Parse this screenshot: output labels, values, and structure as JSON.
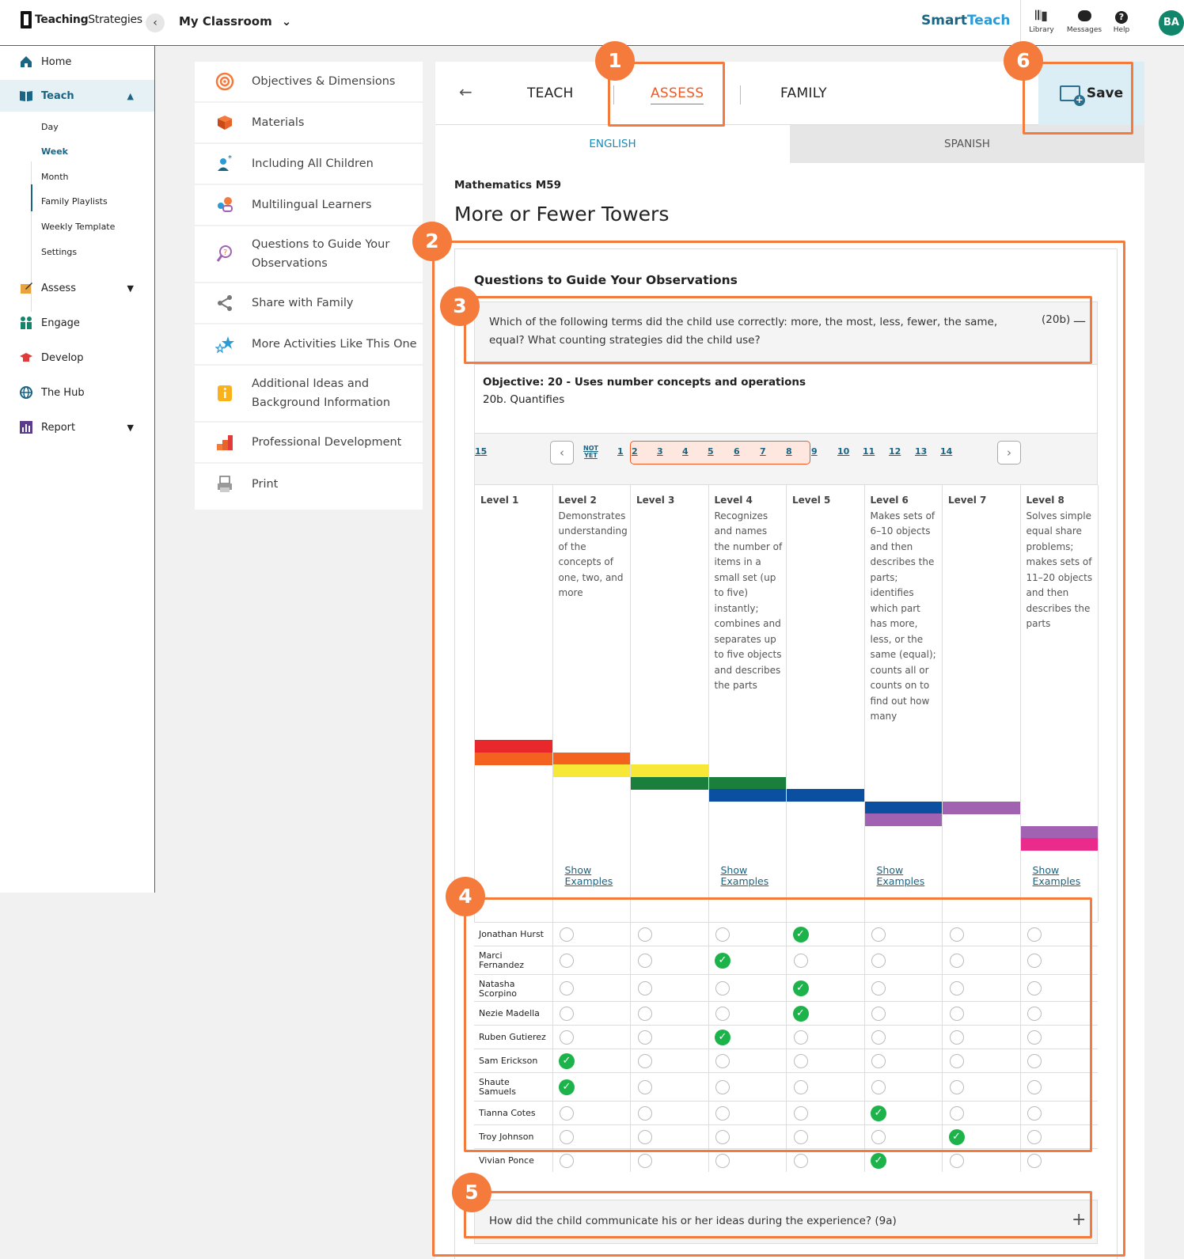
{
  "header": {
    "logo_bold": "Teaching",
    "logo_light": "Strategies",
    "classroom": "My Classroom",
    "brand_a": "Smart",
    "brand_b": "Teach",
    "library": "Library",
    "messages": "Messages",
    "help": "Help",
    "avatar": "BA"
  },
  "sidebar": {
    "items": [
      {
        "label": "Home"
      },
      {
        "label": "Teach"
      },
      {
        "label": "Assess"
      },
      {
        "label": "Engage"
      },
      {
        "label": "Develop"
      },
      {
        "label": "The Hub"
      },
      {
        "label": "Report"
      }
    ],
    "teach_sub": [
      "Day",
      "Week",
      "Month",
      "Family Playlists",
      "Weekly Template",
      "Settings"
    ]
  },
  "left_menu": [
    "Objectives & Dimensions",
    "Materials",
    "Including All Children",
    "Multilingual Learners",
    "Questions to Guide Your Observations",
    "Share with Family",
    "More Activities Like This One",
    "Additional Ideas and Background Information",
    "Professional Development",
    "Print"
  ],
  "tabs": {
    "teach": "TEACH",
    "assess": "ASSESS",
    "family": "FAMILY",
    "save": "Save"
  },
  "languages": {
    "english": "ENGLISH",
    "spanish": "SPANISH"
  },
  "lesson": {
    "subject": "Mathematics M59",
    "title": "More or Fewer Towers"
  },
  "questions": {
    "heading": "Questions to Guide Your Observations",
    "q1_text": "Which of the following terms did the child use correctly: more, the most, less, fewer, the same, equal? What counting strategies did the child use?",
    "q1_code": "(20b)",
    "objective_title": "Objective: 20 - Uses number concepts and operations",
    "objective_sub": "20b. Quantifies",
    "q2_text": "How did the child communicate his or her ideas during the experience? (9a)"
  },
  "pager": {
    "not_yet": "NOT YET",
    "pages": [
      "1",
      "2",
      "3",
      "4",
      "5",
      "6",
      "7",
      "8",
      "9",
      "10",
      "11",
      "12",
      "13",
      "14",
      "15"
    ]
  },
  "levels": [
    {
      "name": "Level 1",
      "desc": ""
    },
    {
      "name": "Level 2",
      "desc": "Demonstrates understanding of the concepts of one, two, and more"
    },
    {
      "name": "Level 3",
      "desc": ""
    },
    {
      "name": "Level 4",
      "desc": "Recognizes and names the number of items in a small set (up to five) instantly; combines and separates up to five objects and describes the parts"
    },
    {
      "name": "Level 5",
      "desc": ""
    },
    {
      "name": "Level 6",
      "desc": "Makes sets of 6–10 objects and then describes the parts; identifies which part has more, less, or the same (equal); counts all or counts on to find out how many"
    },
    {
      "name": "Level 7",
      "desc": ""
    },
    {
      "name": "Level 8",
      "desc": "Solves simple equal share problems; makes sets of 11–20 objects and then describes the parts"
    }
  ],
  "show_examples": "Show Examples",
  "colors": {
    "red": "#e8282b",
    "orange": "#f4621f",
    "yellow": "#f7e837",
    "green": "#1a7f3c",
    "blue": "#0b4fa0",
    "purple": "#a062b1",
    "pink": "#ea2b8c",
    "accent": "#f47b3c"
  },
  "students": [
    {
      "name": "Jonathan Hurst",
      "level": 4
    },
    {
      "name": "Marci Fernandez",
      "level": 3
    },
    {
      "name": "Natasha Scorpino",
      "level": 4
    },
    {
      "name": "Nezie Madella",
      "level": 4
    },
    {
      "name": "Ruben Gutierez",
      "level": 3
    },
    {
      "name": "Sam Erickson",
      "level": 1
    },
    {
      "name": "Shaute Samuels",
      "level": 1
    },
    {
      "name": "Tianna Cotes",
      "level": 5
    },
    {
      "name": "Troy Johnson",
      "level": 6
    },
    {
      "name": "Vivian Ponce",
      "level": 5
    }
  ],
  "callouts": [
    "1",
    "2",
    "3",
    "4",
    "5",
    "6"
  ]
}
